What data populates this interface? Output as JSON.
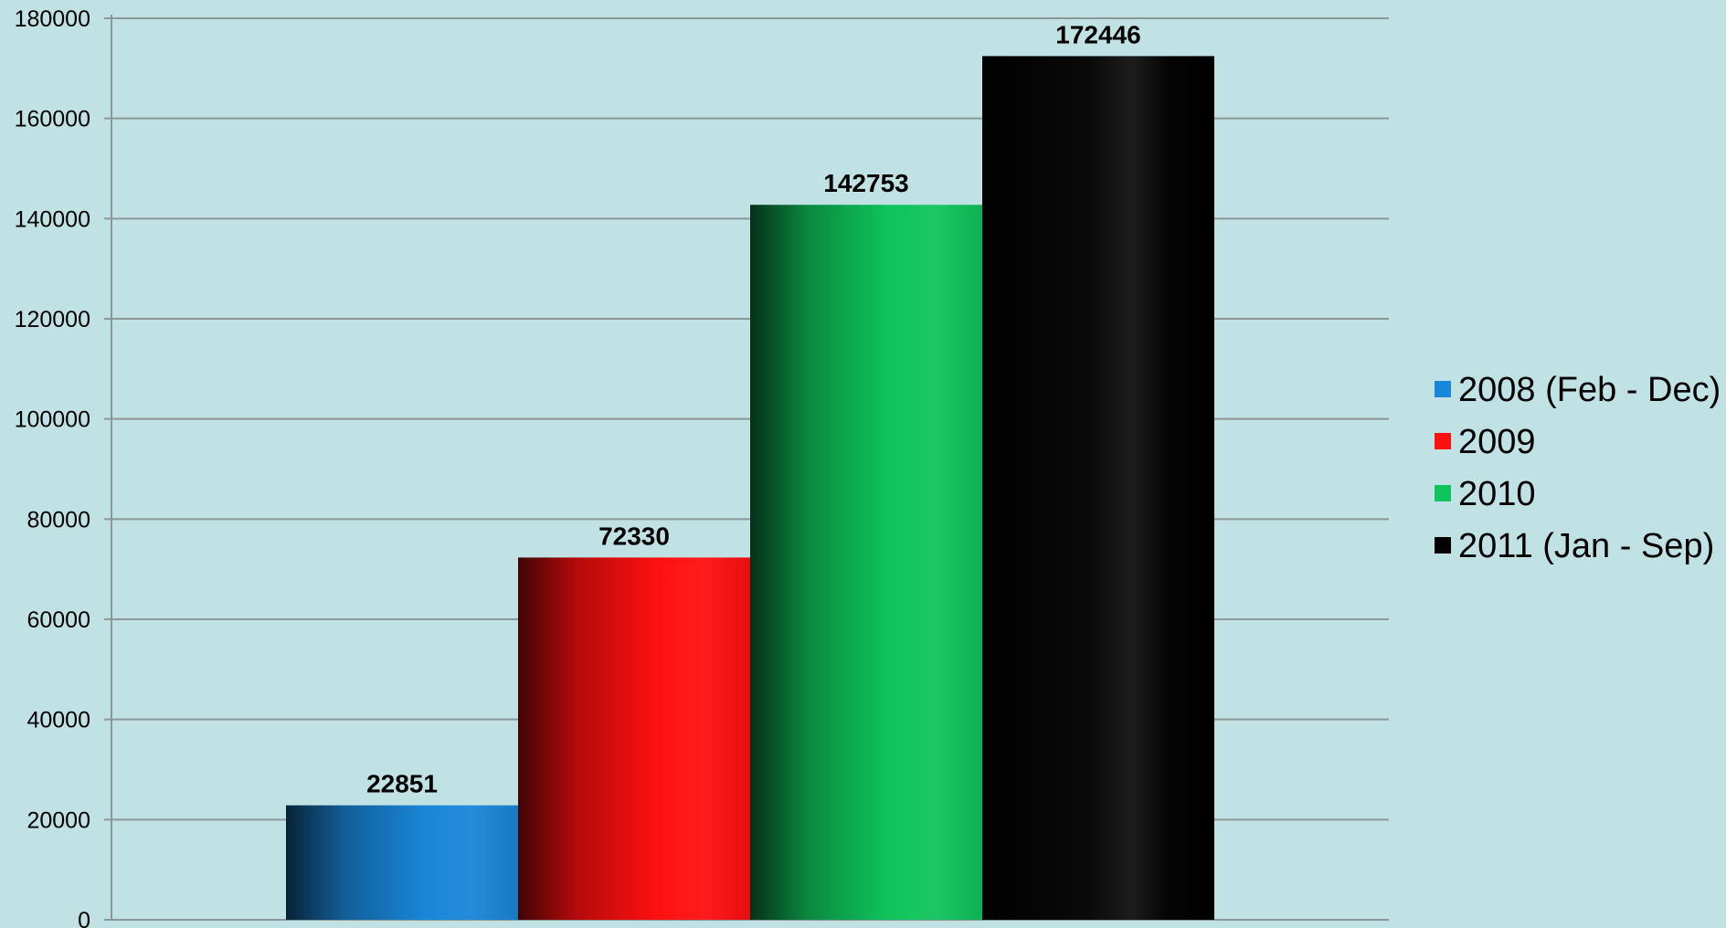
{
  "chart_data": {
    "type": "bar",
    "title": "",
    "xlabel": "",
    "ylabel": "",
    "ylim": [
      0,
      180000
    ],
    "yticks": [
      0,
      20000,
      40000,
      60000,
      80000,
      100000,
      120000,
      140000,
      160000,
      180000
    ],
    "grid": true,
    "legend_position": "right",
    "series": [
      {
        "name": "2008 (Feb - Dec)",
        "value": 22851,
        "color": "#1a86d8"
      },
      {
        "name": "2009",
        "value": 72330,
        "color": "#ff1010"
      },
      {
        "name": "2010",
        "value": 142753,
        "color": "#0fc45c"
      },
      {
        "name": "2011 (Jan - Sep)",
        "value": 172446,
        "color": "#000000"
      }
    ]
  },
  "colors": {
    "background": "#c0e2e4",
    "gridline": "#8c9898"
  }
}
